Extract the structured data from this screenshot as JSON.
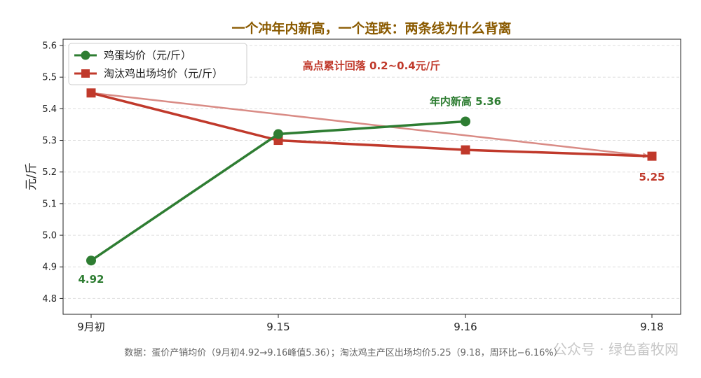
{
  "chart_data": {
    "type": "line",
    "title": "一个冲年内新高，一个连跌：两条线为什么背离",
    "ylabel": "元/斤",
    "xlabel": "",
    "categories": [
      "9月初",
      "9.15",
      "9.16",
      "9.18"
    ],
    "ylim": [
      4.75,
      5.62
    ],
    "yticks": [
      4.8,
      4.9,
      5.0,
      5.1,
      5.2,
      5.3,
      5.4,
      5.5,
      5.6
    ],
    "grid": true,
    "legend_position": "top-left",
    "series": [
      {
        "name": "鸡蛋均价（元/斤）",
        "color": "#2e7d32",
        "marker": "circle",
        "points": [
          [
            "9月初",
            4.92
          ],
          [
            "9.15",
            5.32
          ],
          [
            "9.16",
            5.36
          ]
        ]
      },
      {
        "name": "淘汰鸡出场均价（元/斤）",
        "color": "#c0392b",
        "marker": "square",
        "points": [
          [
            "9月初",
            5.45
          ],
          [
            "9.15",
            5.3
          ],
          [
            "9.16",
            5.27
          ],
          [
            "9.18",
            5.25
          ]
        ]
      }
    ],
    "trend_arrow": {
      "from": [
        "9月初",
        5.45
      ],
      "to": [
        "9.18",
        5.25
      ],
      "color": "#d98b85"
    },
    "annotations": [
      {
        "text": "高点累计回落 0.2~0.4元/斤",
        "color": "#c0392b"
      },
      {
        "text": "年内新高 5.36",
        "color": "#2e7d32"
      },
      {
        "text": "4.92",
        "color": "#2e7d32"
      },
      {
        "text": "5.25",
        "color": "#c0392b"
      }
    ],
    "footer": "数据：蛋价产销均价（9月初4.92→9.16峰值5.36）；淘汰鸡主产区出场均价5.25（9.18，周环比−6.16%）",
    "watermark": "公众号 · 绿色畜牧网"
  }
}
